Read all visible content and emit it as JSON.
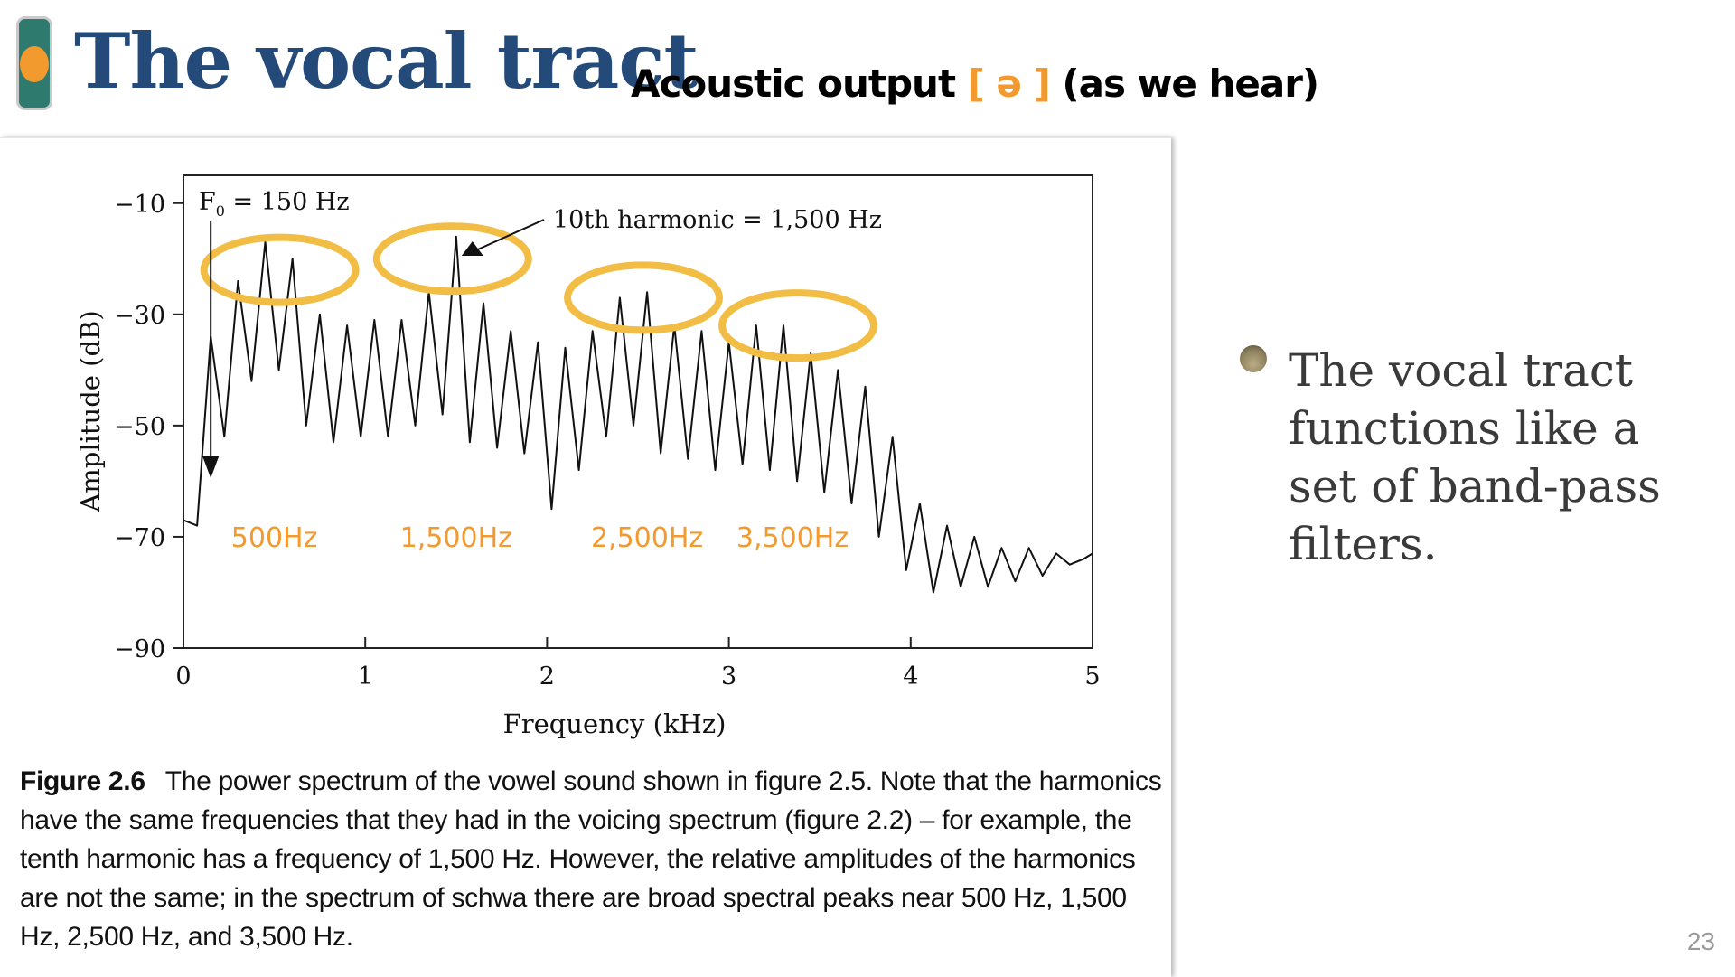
{
  "slide": {
    "title": "The vocal tract",
    "subtitle_prefix": "Acoustic output",
    "subtitle_ipa": "[ ə ]",
    "subtitle_suffix": "(as we hear)",
    "bullet_text": "The vocal tract functions like a set of band-pass filters.",
    "slide_number": "23",
    "accent_color": "#f39a2e",
    "title_color": "#234a79",
    "ring_color": "#f2bd45"
  },
  "figure": {
    "label": "Figure 2.6",
    "caption": "The power spectrum of the vowel sound shown in figure 2.5. Note that the harmonics have the same frequencies that they had in the voicing spectrum (figure 2.2) – for example, the tenth harmonic has a frequency of 1,500 Hz. However, the relative amplitudes of the harmonics are not the same; in the spectrum of schwa there are broad spectral peaks near 500 Hz, 1,500 Hz, 2,500 Hz, and 3,500 Hz."
  },
  "chart_data": {
    "type": "line",
    "title": "",
    "xlabel": "Frequency (kHz)",
    "ylabel": "Amplitude (dB)",
    "xlim": [
      0,
      5
    ],
    "ylim": [
      -90,
      -5
    ],
    "x_ticks": [
      0,
      1,
      2,
      3,
      4,
      5
    ],
    "y_ticks": [
      -10,
      -30,
      -50,
      -70,
      -90
    ],
    "grid": false,
    "harmonics": {
      "x_khz": [
        0.15,
        0.3,
        0.45,
        0.6,
        0.75,
        0.9,
        1.05,
        1.2,
        1.35,
        1.5,
        1.65,
        1.8,
        1.95,
        2.1,
        2.25,
        2.4,
        2.55,
        2.7,
        2.85,
        3.0,
        3.15,
        3.3,
        3.45,
        3.6,
        3.75,
        3.9,
        4.05,
        4.2,
        4.35,
        4.5,
        4.65,
        4.8,
        4.95
      ],
      "peak_db": [
        -34,
        -24,
        -17,
        -20,
        -30,
        -32,
        -31,
        -31,
        -26,
        -16,
        -28,
        -33,
        -35,
        -36,
        -33,
        -27,
        -26,
        -32,
        -33,
        -35,
        -32,
        -32,
        -37,
        -40,
        -43,
        -52,
        -64,
        -68,
        -70,
        -72,
        -72,
        -73,
        -74
      ],
      "trough_db": [
        -68,
        -52,
        -42,
        -40,
        -50,
        -53,
        -52,
        -52,
        -50,
        -48,
        -53,
        -54,
        -55,
        -65,
        -58,
        -52,
        -50,
        -55,
        -56,
        -58,
        -57,
        -58,
        -60,
        -62,
        -64,
        -70,
        -76,
        -80,
        -79,
        -79,
        -78,
        -77,
        -75
      ],
      "start_db": -67
    },
    "annotations": [
      {
        "text": "F",
        "sub": "0",
        "suffix": " = 150 Hz",
        "points_to_khz": 0.15
      },
      {
        "text": "10th harmonic = 1,500 Hz",
        "points_to_khz": 1.5
      }
    ],
    "formant_labels": [
      {
        "text": "500Hz",
        "x_khz": 0.5
      },
      {
        "text": "1,500Hz",
        "x_khz": 1.5
      },
      {
        "text": "2,500Hz",
        "x_khz": 2.55
      },
      {
        "text": "3,500Hz",
        "x_khz": 3.35
      }
    ],
    "highlight_regions": [
      {
        "center_khz": 0.53,
        "center_db": -22
      },
      {
        "center_khz": 1.48,
        "center_db": -20
      },
      {
        "center_khz": 2.53,
        "center_db": -27
      },
      {
        "center_khz": 3.38,
        "center_db": -32
      }
    ]
  }
}
